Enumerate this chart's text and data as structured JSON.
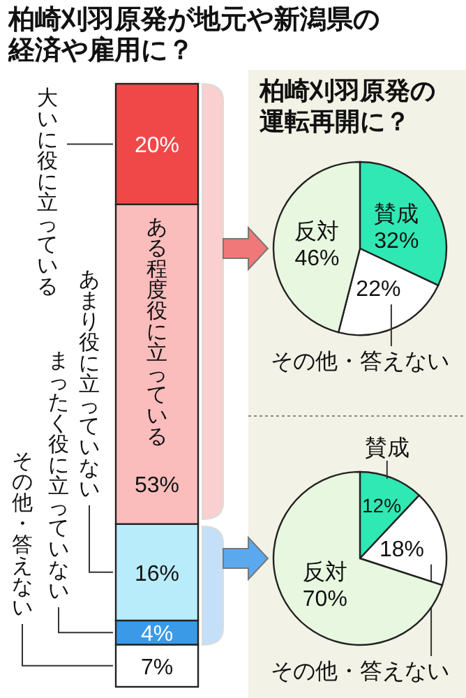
{
  "chart_data": [
    {
      "type": "bar",
      "stacked": true,
      "title": "柏崎刈羽原発が地元や新潟県の経済や雇用に？",
      "categories": [
        null
      ],
      "series": [
        {
          "name": "その他・答えない",
          "color": "#ffffff",
          "values": [
            7
          ],
          "value_labels": [
            "7%"
          ]
        },
        {
          "name": "まったく役に立っていない",
          "color": "#3a9ae8",
          "values": [
            4
          ],
          "value_labels": [
            "4%"
          ]
        },
        {
          "name": "あまり役に立っていない",
          "color": "#b8ecfa",
          "values": [
            16
          ],
          "value_labels": [
            "16%"
          ]
        },
        {
          "name": "ある程度役に立っている",
          "color": "#fbbcbc",
          "values": [
            53
          ],
          "value_labels": [
            "53%"
          ]
        },
        {
          "name": "大いに役に立っている",
          "color": "#f04848",
          "values": [
            20
          ],
          "value_labels": [
            "20%"
          ]
        }
      ]
    },
    {
      "type": "pie",
      "title": "柏崎刈羽原発の運転再開に？",
      "categories": [
        "賛成",
        "その他・答えない",
        "反対"
      ],
      "values": [
        32,
        22,
        46
      ],
      "colors": [
        "#30e8b4",
        "#ffffff",
        "#e8f8e0"
      ],
      "value_labels": [
        "32%",
        "22%",
        "46%"
      ]
    },
    {
      "type": "pie",
      "categories": [
        "賛成",
        "その他・答えない",
        "反対"
      ],
      "values": [
        12,
        18,
        70
      ],
      "colors": [
        "#30e8b4",
        "#ffffff",
        "#e8f8e0"
      ],
      "value_labels": [
        "12%",
        "18%",
        "70%"
      ]
    }
  ]
}
